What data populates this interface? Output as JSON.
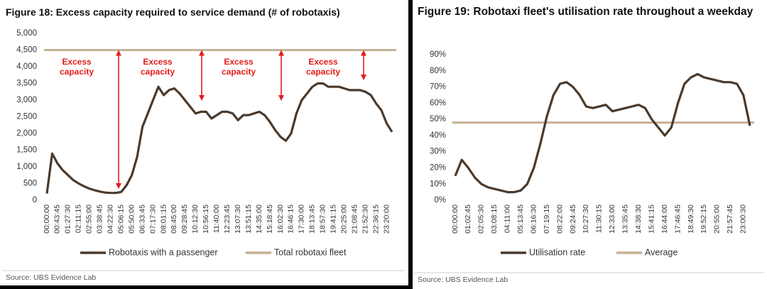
{
  "chart_data": [
    {
      "type": "line",
      "title": "Figure 18: Excess capacity required to service demand (# of robotaxis)",
      "categories": [
        "00:00:00",
        null,
        "00:43:45",
        null,
        "01:27:30",
        null,
        "02:11:15",
        null,
        "02:55:00",
        null,
        "03:38:45",
        null,
        "04:22:30",
        null,
        "05:06:15",
        null,
        "05:50:00",
        null,
        "06:33:45",
        null,
        "07:17:30",
        null,
        "08:01:15",
        null,
        "08:45:00",
        null,
        "09:28:45",
        null,
        "10:12:30",
        null,
        "10:56:15",
        null,
        "11:40:00",
        null,
        "12:23:45",
        null,
        "13:07:30",
        null,
        "13:51:15",
        null,
        "14:35:00",
        null,
        "15:18:45",
        null,
        "16:02:30",
        null,
        "16:46:15",
        null,
        "17:30:00",
        null,
        "18:13:45",
        null,
        "18:57:30",
        null,
        "19:41:15",
        null,
        "20:25:00",
        null,
        "21:08:45",
        null,
        "21:52:30",
        null,
        "22:36:15",
        null,
        "23:20:00",
        null
      ],
      "series": [
        {
          "name": "Robotaxis with a passenger",
          "color": "#4b3a2c",
          "values": [
            200,
            1400,
            1100,
            900,
            750,
            600,
            500,
            420,
            350,
            300,
            260,
            230,
            220,
            220,
            250,
            450,
            750,
            1300,
            2200,
            2600,
            3000,
            3400,
            3150,
            3300,
            3350,
            3200,
            3000,
            2800,
            2600,
            2650,
            2650,
            2450,
            2550,
            2650,
            2650,
            2600,
            2400,
            2550,
            2550,
            2600,
            2650,
            2550,
            2350,
            2100,
            1900,
            1780,
            2000,
            2600,
            3000,
            3200,
            3400,
            3500,
            3500,
            3400,
            3400,
            3400,
            3350,
            3300,
            3300,
            3300,
            3250,
            3150,
            2900,
            2700,
            2300,
            2050
          ]
        }
      ],
      "reference_lines": [
        {
          "name": "Total robotaxi fleet",
          "color": "#c8b196",
          "value": 4500
        }
      ],
      "ylim": [
        0,
        5000
      ],
      "yticks": [
        0,
        500,
        {
          "value": 1000,
          "label": "1,000"
        },
        {
          "value": 1500,
          "label": "1,500"
        },
        {
          "value": 2000,
          "label": "2,000"
        },
        {
          "value": 2500,
          "label": "2,500"
        },
        {
          "value": 3000,
          "label": "3,000"
        },
        {
          "value": 3500,
          "label": "3,500"
        },
        {
          "value": 4000,
          "label": "4,000"
        },
        {
          "value": 4500,
          "label": "4,500"
        },
        {
          "value": 5000,
          "label": "5,000"
        }
      ],
      "annotations": [
        {
          "lines": [
            "Excess",
            "capacity"
          ]
        },
        {
          "lines": [
            "Excess",
            "capacity"
          ]
        },
        {
          "lines": [
            "Excess",
            "capacity"
          ]
        },
        {
          "lines": [
            "Excess",
            "capacity"
          ]
        }
      ],
      "source": "Source:  UBS Evidence Lab",
      "grid": false
    },
    {
      "type": "line",
      "title": "Figure 19: Robotaxi fleet's utilisation rate throughout a weekday",
      "categories": [
        "00:00:00",
        null,
        "01:02:45",
        null,
        "02:05:30",
        null,
        "03:08:15",
        null,
        "04:11:00",
        null,
        "05:13:45",
        null,
        "06:16:30",
        null,
        "07:19:15",
        null,
        "08:22:00",
        null,
        "09:24:45",
        null,
        "10:27:30",
        null,
        "11:30:15",
        null,
        "12:33:00",
        null,
        "13:35:45",
        null,
        "14:38:30",
        null,
        "15:41:15",
        null,
        "16:44:00",
        null,
        "17:46:45",
        null,
        "18:49:30",
        null,
        "19:52:15",
        null,
        "20:55:00",
        null,
        "21:57:45",
        null,
        "23:00:30",
        null
      ],
      "series": [
        {
          "name": "Utilisation rate",
          "color": "#4b3a2c",
          "values": [
            15,
            25,
            20,
            14,
            10,
            8,
            7,
            6,
            5,
            5,
            6,
            10,
            20,
            35,
            52,
            65,
            72,
            73,
            70,
            65,
            58,
            57,
            58,
            59,
            55,
            56,
            57,
            58,
            59,
            57,
            50,
            45,
            40,
            45,
            60,
            72,
            76,
            78,
            76,
            75,
            74,
            73,
            73,
            72,
            65,
            46
          ]
        }
      ],
      "reference_lines": [
        {
          "name": "Average",
          "color": "#c8b196",
          "value": 48
        }
      ],
      "ylim": [
        0,
        90
      ],
      "yticks": [
        {
          "value": 0,
          "label": "0%"
        },
        {
          "value": 10,
          "label": "10%"
        },
        {
          "value": 20,
          "label": "20%"
        },
        {
          "value": 30,
          "label": "30%"
        },
        {
          "value": 40,
          "label": "40%"
        },
        {
          "value": 50,
          "label": "50%"
        },
        {
          "value": 60,
          "label": "60%"
        },
        {
          "value": 70,
          "label": "70%"
        },
        {
          "value": 80,
          "label": "80%"
        },
        {
          "value": 90,
          "label": "90%"
        }
      ],
      "source": "Source:  UBS Evidence Lab",
      "grid": false
    }
  ]
}
